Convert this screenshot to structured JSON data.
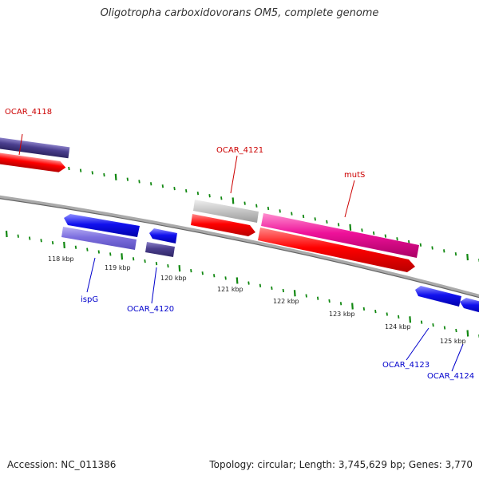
{
  "title": "Oligotropha carboxidovorans OM5, complete genome",
  "accession": "Accession: NC_011386",
  "topology": "Topology: circular; Length: 3,745,629 bp; Genes: 3,770",
  "scale_labels": [
    "118 kbp",
    "119 kbp",
    "120 kbp",
    "121 kbp",
    "122 kbp",
    "123 kbp",
    "124 kbp",
    "125 kbp"
  ],
  "gene_labels": {
    "ocar_4118": "OCAR_4118",
    "ocar_4121": "OCAR_4121",
    "muts": "mutS",
    "ispg": "ispG",
    "ocar_4120": "OCAR_4120",
    "ocar_4123": "OCAR_4123",
    "ocar_4124": "OCAR_4124"
  },
  "colors": {
    "backbone": "#888888",
    "tick_green": "#118811",
    "feature_red": "#ff0000",
    "feature_blue": "#0a0aee",
    "feature_purple": "#7d6fdf",
    "feature_dark_purple": "#4a3e8e",
    "feature_gray": "#c8c8c8",
    "feature_magenta": "#ee1199",
    "label_red": "#cc0000",
    "label_blue": "#0000cc"
  }
}
